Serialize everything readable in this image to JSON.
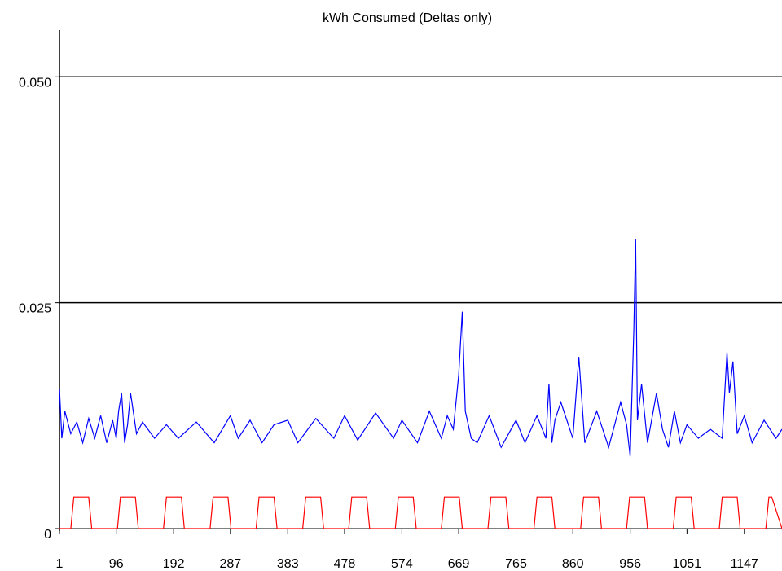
{
  "chart_data": {
    "type": "line",
    "title": "kWh Consumed (Deltas only)",
    "xlabel": "",
    "ylabel": "",
    "xlim": [
      1,
      1210
    ],
    "ylim": [
      0,
      0.0585
    ],
    "grid": "horizontal lines at 0.025 and 0.050",
    "y_ticks": [
      "0",
      "0.025",
      "0.050"
    ],
    "y_tick_values": [
      0,
      0.025,
      0.05
    ],
    "x_ticks": [
      "1",
      "96",
      "192",
      "287",
      "383",
      "478",
      "574",
      "669",
      "765",
      "860",
      "956",
      "1051",
      "1147"
    ],
    "x_tick_values": [
      1,
      96,
      192,
      287,
      383,
      478,
      574,
      669,
      765,
      860,
      956,
      1051,
      1147
    ],
    "colors": {
      "series_blue": "#0000ff",
      "series_red": "#ff0000",
      "axis": "#000000"
    },
    "series": [
      {
        "color": "#0000ff",
        "x": [
          1,
          5,
          10,
          20,
          30,
          40,
          50,
          60,
          70,
          80,
          90,
          96,
          100,
          105,
          110,
          115,
          120,
          130,
          140,
          160,
          180,
          200,
          230,
          260,
          287,
          300,
          320,
          340,
          360,
          383,
          400,
          430,
          460,
          478,
          500,
          530,
          560,
          574,
          600,
          620,
          640,
          650,
          660,
          669,
          675,
          680,
          690,
          700,
          720,
          740,
          765,
          780,
          800,
          815,
          820,
          825,
          830,
          840,
          860,
          870,
          880,
          900,
          920,
          940,
          950,
          956,
          962,
          965,
          968,
          975,
          985,
          1000,
          1010,
          1020,
          1030,
          1040,
          1051,
          1070,
          1090,
          1110,
          1118,
          1122,
          1128,
          1135,
          1147,
          1160,
          1180,
          1200,
          1210
        ],
        "values": [
          0.0155,
          0.01,
          0.013,
          0.0105,
          0.0118,
          0.0095,
          0.0122,
          0.01,
          0.0125,
          0.0095,
          0.012,
          0.01,
          0.013,
          0.015,
          0.0095,
          0.0115,
          0.015,
          0.0105,
          0.0118,
          0.01,
          0.0115,
          0.01,
          0.0118,
          0.0095,
          0.0125,
          0.01,
          0.012,
          0.0095,
          0.0115,
          0.012,
          0.0095,
          0.0122,
          0.01,
          0.0125,
          0.0098,
          0.0128,
          0.01,
          0.012,
          0.0095,
          0.013,
          0.01,
          0.0125,
          0.011,
          0.017,
          0.024,
          0.013,
          0.01,
          0.0095,
          0.0125,
          0.009,
          0.012,
          0.0095,
          0.0125,
          0.01,
          0.016,
          0.0095,
          0.012,
          0.014,
          0.01,
          0.019,
          0.0095,
          0.013,
          0.009,
          0.014,
          0.0115,
          0.008,
          0.022,
          0.032,
          0.012,
          0.016,
          0.0095,
          0.015,
          0.011,
          0.009,
          0.013,
          0.0095,
          0.0115,
          0.01,
          0.011,
          0.01,
          0.0195,
          0.015,
          0.0185,
          0.0105,
          0.0125,
          0.0095,
          0.012,
          0.01,
          0.011
        ]
      },
      {
        "color": "#ff0000",
        "x": [
          1,
          20,
          25,
          30,
          50,
          55,
          58,
          75,
          98,
          103,
          108,
          128,
          133,
          138,
          155,
          175,
          180,
          185,
          205,
          210,
          215,
          233,
          253,
          258,
          263,
          283,
          288,
          293,
          310,
          330,
          335,
          340,
          360,
          365,
          370,
          388,
          408,
          413,
          418,
          438,
          443,
          448,
          465,
          485,
          490,
          495,
          515,
          520,
          525,
          543,
          563,
          568,
          573,
          593,
          598,
          603,
          620,
          640,
          645,
          650,
          670,
          675,
          680,
          698,
          718,
          723,
          728,
          748,
          753,
          758,
          775,
          795,
          800,
          805,
          825,
          830,
          835,
          853,
          873,
          878,
          883,
          903,
          908,
          913,
          930,
          950,
          955,
          960,
          980,
          985,
          990,
          1008,
          1028,
          1033,
          1038,
          1058,
          1063,
          1068,
          1085,
          1105,
          1110,
          1115,
          1135,
          1140,
          1145,
          1163,
          1183,
          1188,
          1193,
          1210
        ],
        "values": [
          0,
          0,
          0.0035,
          0.0035,
          0.0035,
          0,
          0,
          0,
          0,
          0.0035,
          0.0035,
          0.0035,
          0,
          0,
          0,
          0,
          0.0035,
          0.0035,
          0.0035,
          0,
          0,
          0,
          0,
          0.0035,
          0.0035,
          0.0035,
          0,
          0,
          0,
          0,
          0.0035,
          0.0035,
          0.0035,
          0,
          0,
          0,
          0,
          0.0035,
          0.0035,
          0.0035,
          0,
          0,
          0,
          0,
          0.0035,
          0.0035,
          0.0035,
          0,
          0,
          0,
          0,
          0.0035,
          0.0035,
          0.0035,
          0,
          0,
          0,
          0,
          0.0035,
          0.0035,
          0.0035,
          0,
          0,
          0,
          0,
          0.0035,
          0.0035,
          0.0035,
          0,
          0,
          0,
          0,
          0.0035,
          0.0035,
          0.0035,
          0,
          0,
          0,
          0,
          0.0035,
          0.0035,
          0.0035,
          0,
          0,
          0,
          0,
          0.0035,
          0.0035,
          0.0035,
          0,
          0,
          0,
          0,
          0.0035,
          0.0035,
          0.0035,
          0,
          0,
          0,
          0,
          0.0035,
          0.0035,
          0.0035,
          0,
          0,
          0,
          0,
          0.0035,
          0.0035,
          0
        ]
      }
    ]
  }
}
